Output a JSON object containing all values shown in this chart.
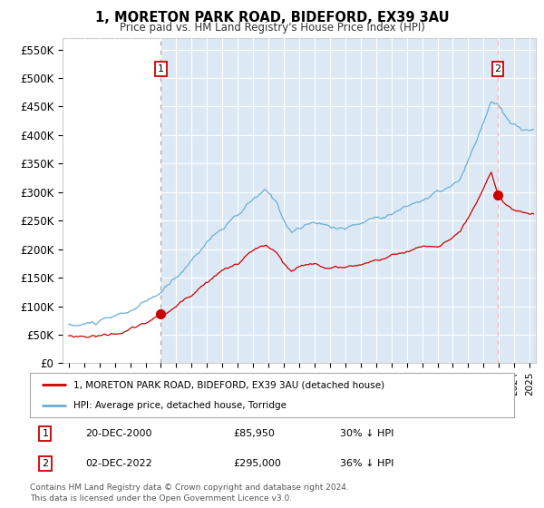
{
  "title": "1, MORETON PARK ROAD, BIDEFORD, EX39 3AU",
  "subtitle": "Price paid vs. HM Land Registry's House Price Index (HPI)",
  "bg_color": "#dce9f5",
  "line_hpi_color": "#6baed6",
  "line_price_color": "#cc0000",
  "marker_color": "#cc0000",
  "vline_color_1": "#aaaaaa",
  "vline_color_2": "#ffaaaa",
  "annotation_box_color": "#cc0000",
  "purchase_1": {
    "date_num": 2001.0,
    "price": 85950,
    "label": "1"
  },
  "purchase_2": {
    "date_num": 2022.92,
    "price": 295000,
    "label": "2"
  },
  "legend_label_price": "1, MORETON PARK ROAD, BIDEFORD, EX39 3AU (detached house)",
  "legend_label_hpi": "HPI: Average price, detached house, Torridge",
  "note1_label": "1",
  "note1_date": "20-DEC-2000",
  "note1_price": "£85,950",
  "note1_hpi": "30% ↓ HPI",
  "note2_label": "2",
  "note2_date": "02-DEC-2022",
  "note2_price": "£295,000",
  "note2_hpi": "36% ↓ HPI",
  "footer": "Contains HM Land Registry data © Crown copyright and database right 2024.\nThis data is licensed under the Open Government Licence v3.0.",
  "yticks": [
    0,
    50000,
    100000,
    150000,
    200000,
    250000,
    300000,
    350000,
    400000,
    450000,
    500000,
    550000
  ],
  "ytick_labels": [
    "£0",
    "£50K",
    "£100K",
    "£150K",
    "£200K",
    "£250K",
    "£300K",
    "£350K",
    "£400K",
    "£450K",
    "£500K",
    "£550K"
  ],
  "xmin": 1994.6,
  "xmax": 2025.4,
  "ymin": 0,
  "ymax": 570000
}
